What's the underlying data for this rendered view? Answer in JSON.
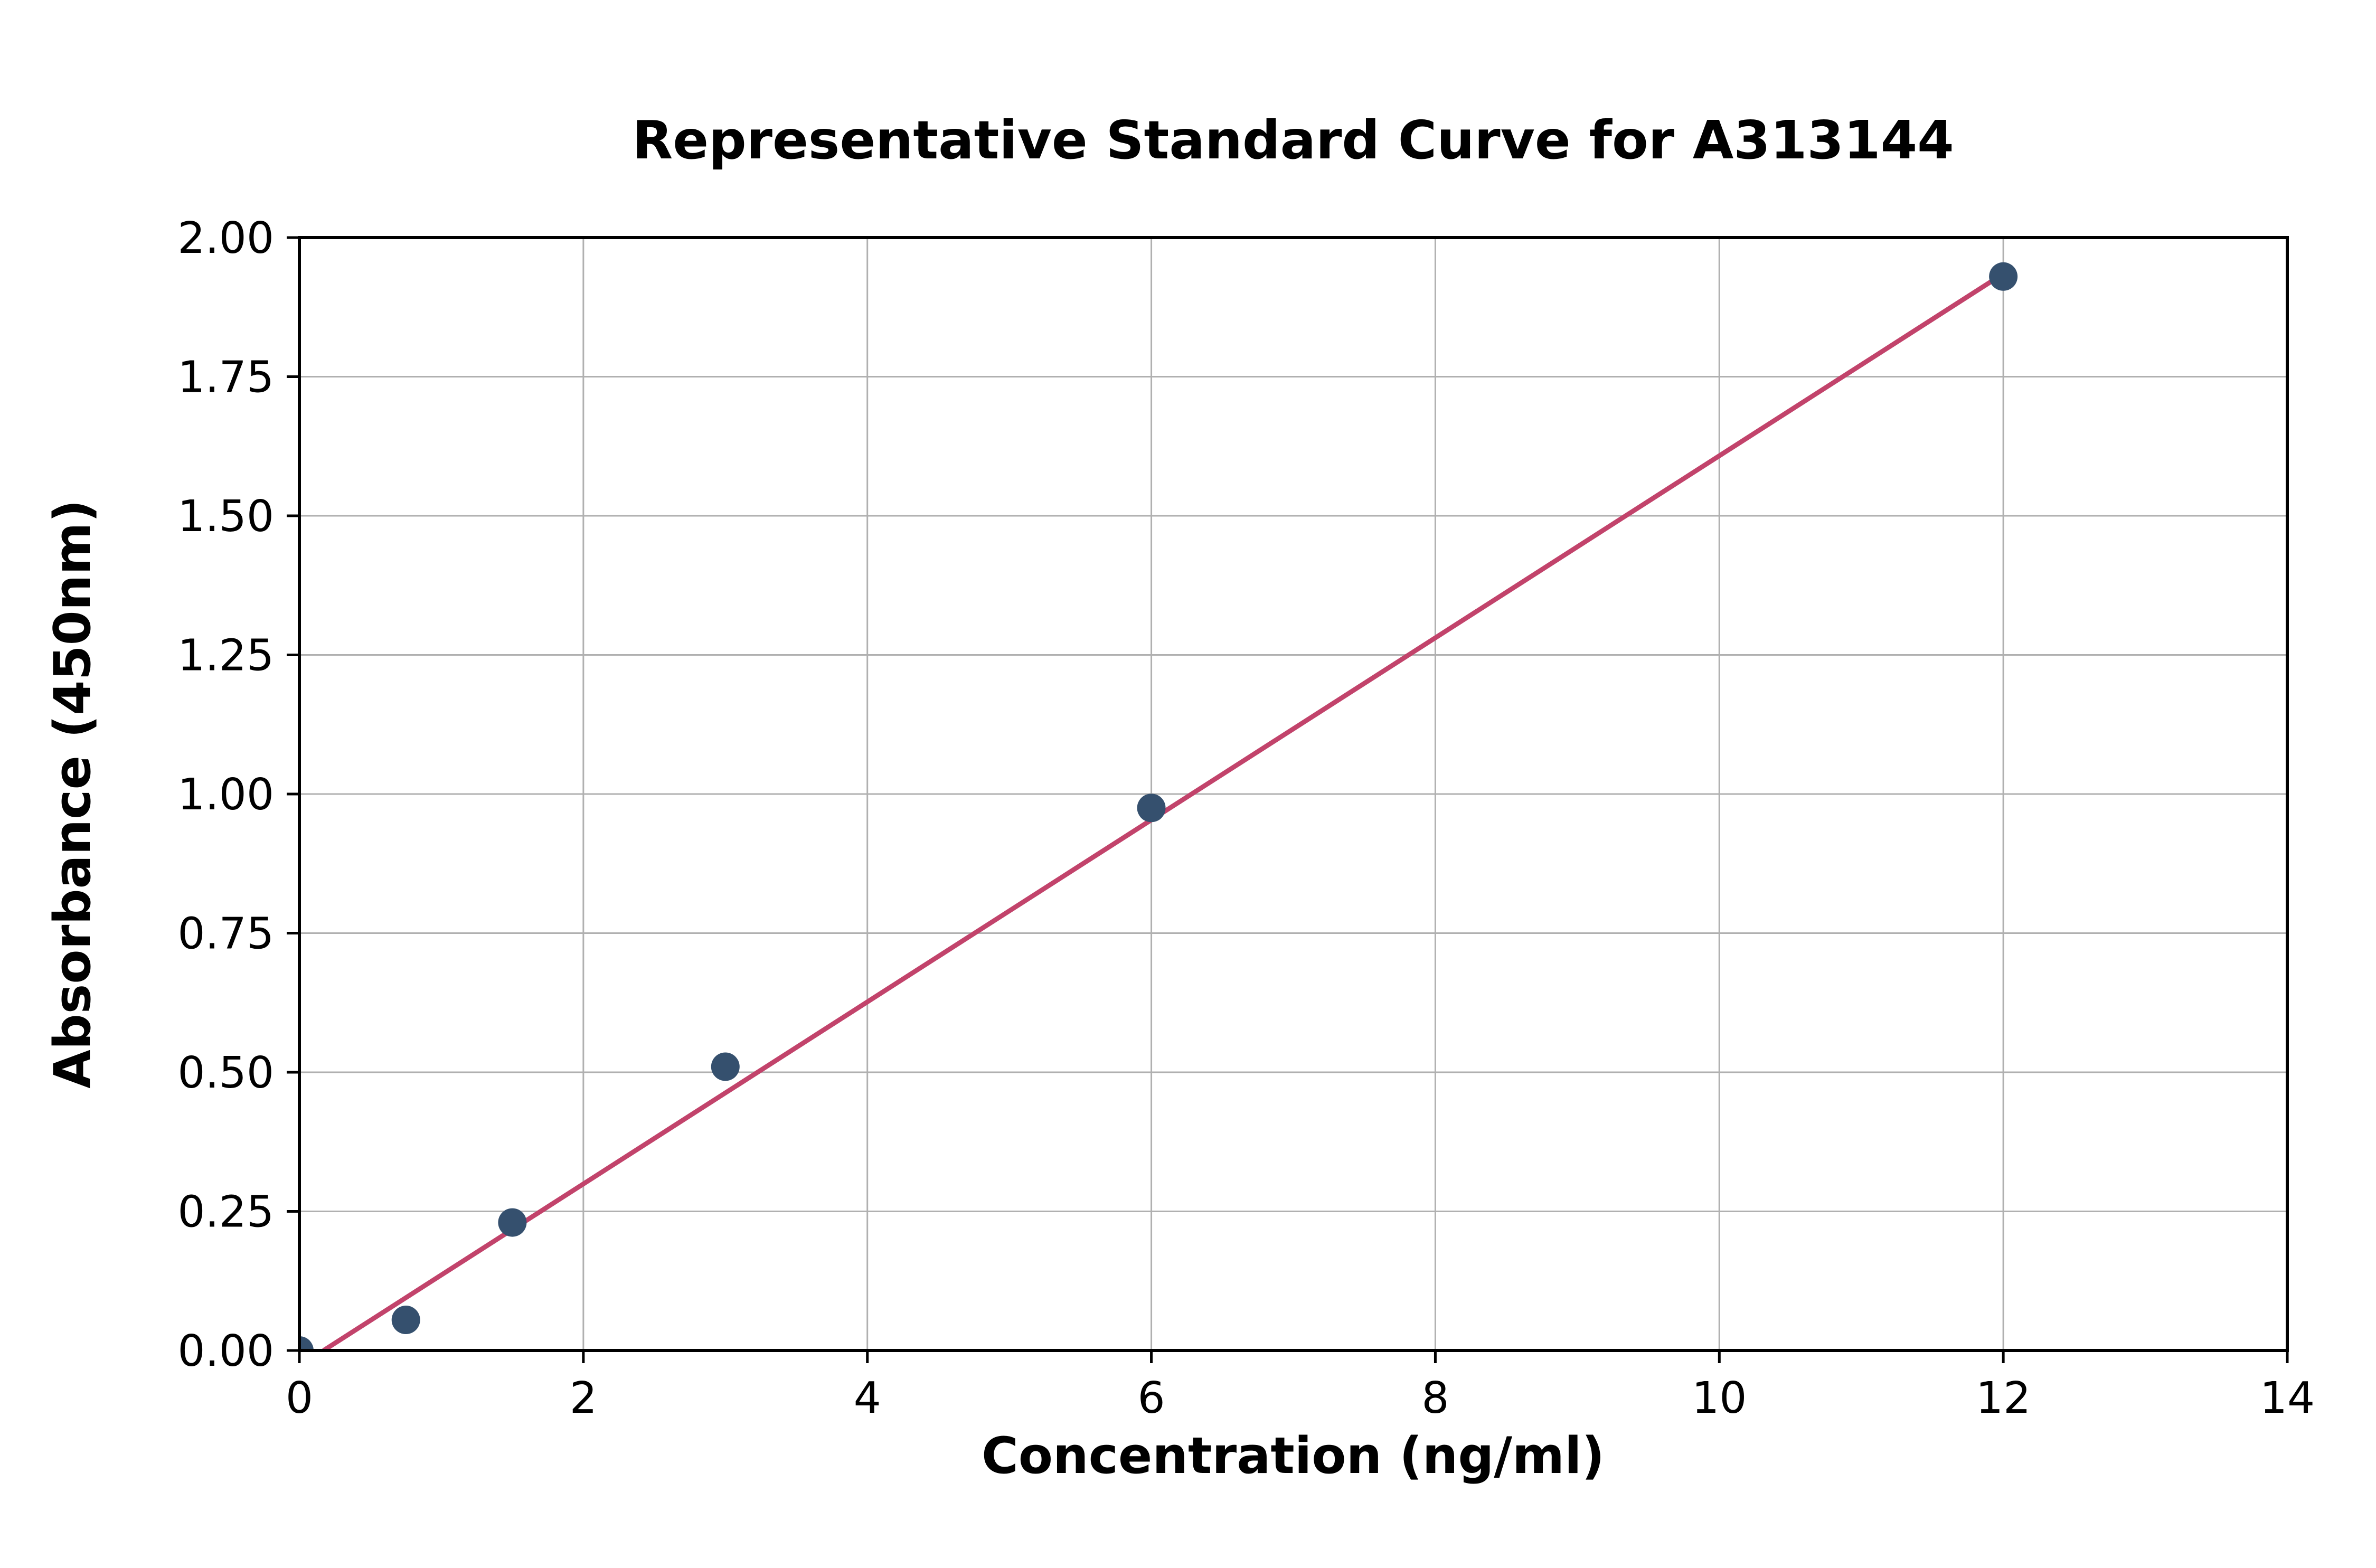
{
  "chart_data": {
    "type": "scatter",
    "title": "Representative Standard Curve for A313144",
    "xlabel": "Concentration (ng/ml)",
    "ylabel": "Absorbance (450nm)",
    "xlim": [
      0,
      14
    ],
    "ylim": [
      0,
      2.0
    ],
    "xticks": [
      0,
      2,
      4,
      6,
      8,
      10,
      12,
      14
    ],
    "xtick_labels": [
      "0",
      "2",
      "4",
      "6",
      "8",
      "10",
      "12",
      "14"
    ],
    "yticks": [
      0,
      0.25,
      0.5,
      0.75,
      1.0,
      1.25,
      1.5,
      1.75,
      2.0
    ],
    "ytick_labels": [
      "0.00",
      "0.25",
      "0.50",
      "0.75",
      "1.00",
      "1.25",
      "1.50",
      "1.75",
      "2.00"
    ],
    "grid": true,
    "legend": "none",
    "points": [
      {
        "x": 0.0,
        "y": 0.0
      },
      {
        "x": 0.75,
        "y": 0.055
      },
      {
        "x": 1.5,
        "y": 0.23
      },
      {
        "x": 3.0,
        "y": 0.51
      },
      {
        "x": 6.0,
        "y": 0.975
      },
      {
        "x": 12.0,
        "y": 1.93
      }
    ],
    "fit_line": [
      {
        "x": 0.17,
        "y": 0.0
      },
      {
        "x": 12.0,
        "y": 1.935
      }
    ],
    "colors": {
      "point": "#35506e",
      "line": "#c2436b",
      "grid": "#b0b0b0",
      "axis": "#000000",
      "background": "#ffffff"
    }
  }
}
